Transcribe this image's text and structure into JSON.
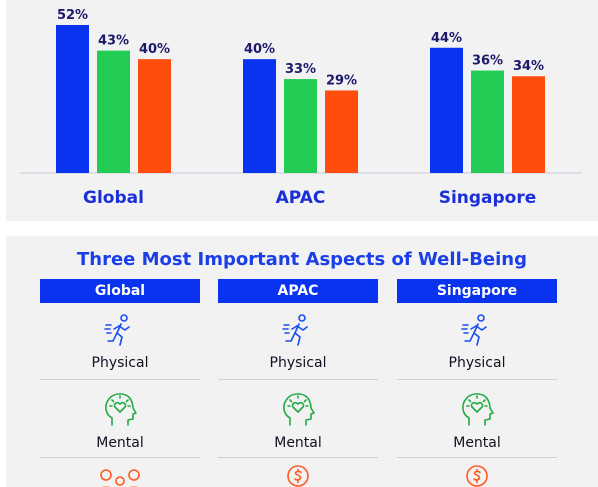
{
  "chart_data": {
    "type": "bar",
    "categories": [
      "Global",
      "APAC",
      "Singapore"
    ],
    "series": [
      {
        "values": [
          52,
          40,
          44
        ],
        "color": "#0a33f0"
      },
      {
        "values": [
          43,
          33,
          36
        ],
        "color": "#22cc55"
      },
      {
        "values": [
          40,
          29,
          34
        ],
        "color": "#ff4d0d"
      }
    ],
    "value_suffix": "%",
    "ylim": [
      0,
      52
    ],
    "grid": false,
    "legend": "none"
  },
  "aspects": {
    "title": "Three Most Important Aspects of Well-Being",
    "columns": [
      "Global",
      "APAC",
      "Singapore"
    ],
    "rows": [
      {
        "icon": "running-person-icon",
        "labels": [
          "Physical",
          "Physical",
          "Physical"
        ]
      },
      {
        "icon": "head-heart-icon",
        "labels": [
          "Mental",
          "Mental",
          "Mental"
        ]
      },
      {
        "icon": "money-icon",
        "labels": [
          "",
          "",
          ""
        ]
      }
    ]
  },
  "colors": {
    "category_text": "#1a2fd8",
    "value_text": "#1d1a6b",
    "icon_blue": "#1a4cf0",
    "icon_green": "#22aa44",
    "icon_orange": "#ff5a1f"
  }
}
